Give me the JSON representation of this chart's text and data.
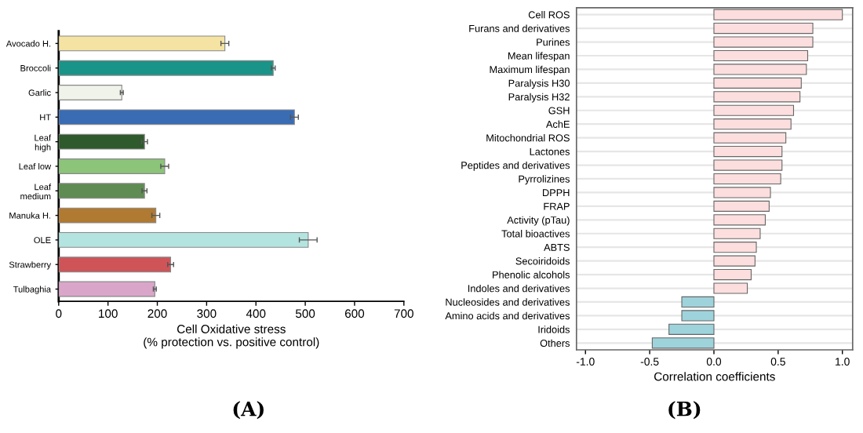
{
  "chart_data": [
    {
      "type": "bar",
      "orientation": "horizontal",
      "xlabel": "Cell Oxidative stress\n(% protection vs. positive control)",
      "annotations": [
        "(A)"
      ],
      "categories": [
        "Avocado H.",
        "Broccoli",
        "Garlic",
        "HT",
        "Leaf\nhigh",
        "Leaf low",
        "Leaf\nmedium",
        "Manuka H.",
        "OLE",
        "Strawberry",
        "Tulbaghia"
      ],
      "values": [
        337,
        435,
        128,
        478,
        174,
        215,
        174,
        197,
        506,
        227,
        195
      ],
      "errors": [
        8,
        4,
        3,
        8,
        6,
        8,
        5,
        8,
        18,
        6,
        3
      ],
      "colors": [
        "#f5e3a3",
        "#1a9488",
        "#f0f3ea",
        "#3a6cb4",
        "#2f5a2c",
        "#8cc47a",
        "#5e8c52",
        "#b07a32",
        "#b4e4e0",
        "#cf5458",
        "#d9a6c9"
      ],
      "xlim": [
        0,
        700
      ],
      "xticks": [
        0,
        100,
        200,
        300,
        400,
        500,
        600,
        700
      ],
      "grid": false
    },
    {
      "type": "bar",
      "orientation": "horizontal",
      "xlabel": "Correlation coefficients",
      "annotations": [
        "(B)"
      ],
      "categories": [
        "Cell ROS",
        "Furans and derivatives",
        "Purines",
        "Mean lifespan",
        "Maximum lifespan",
        "Paralysis H30",
        "Paralysis H32",
        "GSH",
        "AchE",
        "Mitochondrial ROS",
        "Lactones",
        "Peptides and derivatives",
        "Pyrrolizines",
        "DPPH",
        "FRAP",
        "Activity (pTau)",
        "Total bioactives",
        "ABTS",
        "Secoiridoids",
        "Phenolic alcohols",
        "Indoles and derivatives",
        "Nucleosides and derivatives",
        "Amino acids and derivatives",
        "Iridoids",
        "Others"
      ],
      "values": [
        1.0,
        0.77,
        0.77,
        0.73,
        0.72,
        0.68,
        0.67,
        0.62,
        0.6,
        0.56,
        0.53,
        0.53,
        0.52,
        0.44,
        0.43,
        0.4,
        0.36,
        0.33,
        0.32,
        0.29,
        0.26,
        -0.25,
        -0.25,
        -0.35,
        -0.48
      ],
      "colors": [
        "#fddede",
        "#fddede",
        "#fddede",
        "#fddede",
        "#fddede",
        "#fddede",
        "#fddede",
        "#fddede",
        "#fddede",
        "#fddede",
        "#fddede",
        "#fddede",
        "#fddede",
        "#fddede",
        "#fddede",
        "#fddede",
        "#fddede",
        "#fddede",
        "#fddede",
        "#fddede",
        "#fddede",
        "#9ed3dc",
        "#9ed3dc",
        "#9ed3dc",
        "#9ed3dc"
      ],
      "xlim": [
        -1.07,
        1.08
      ],
      "xticks": [
        {
          "value": -1.0,
          "label": "-1.0"
        },
        {
          "value": -0.5,
          "label": "-0.5"
        },
        {
          "value": 0.0,
          "label": "0.0"
        },
        {
          "value": 0.5,
          "label": "0.5"
        },
        {
          "value": 1.0,
          "label": "1.0"
        }
      ],
      "grid": "y"
    }
  ]
}
